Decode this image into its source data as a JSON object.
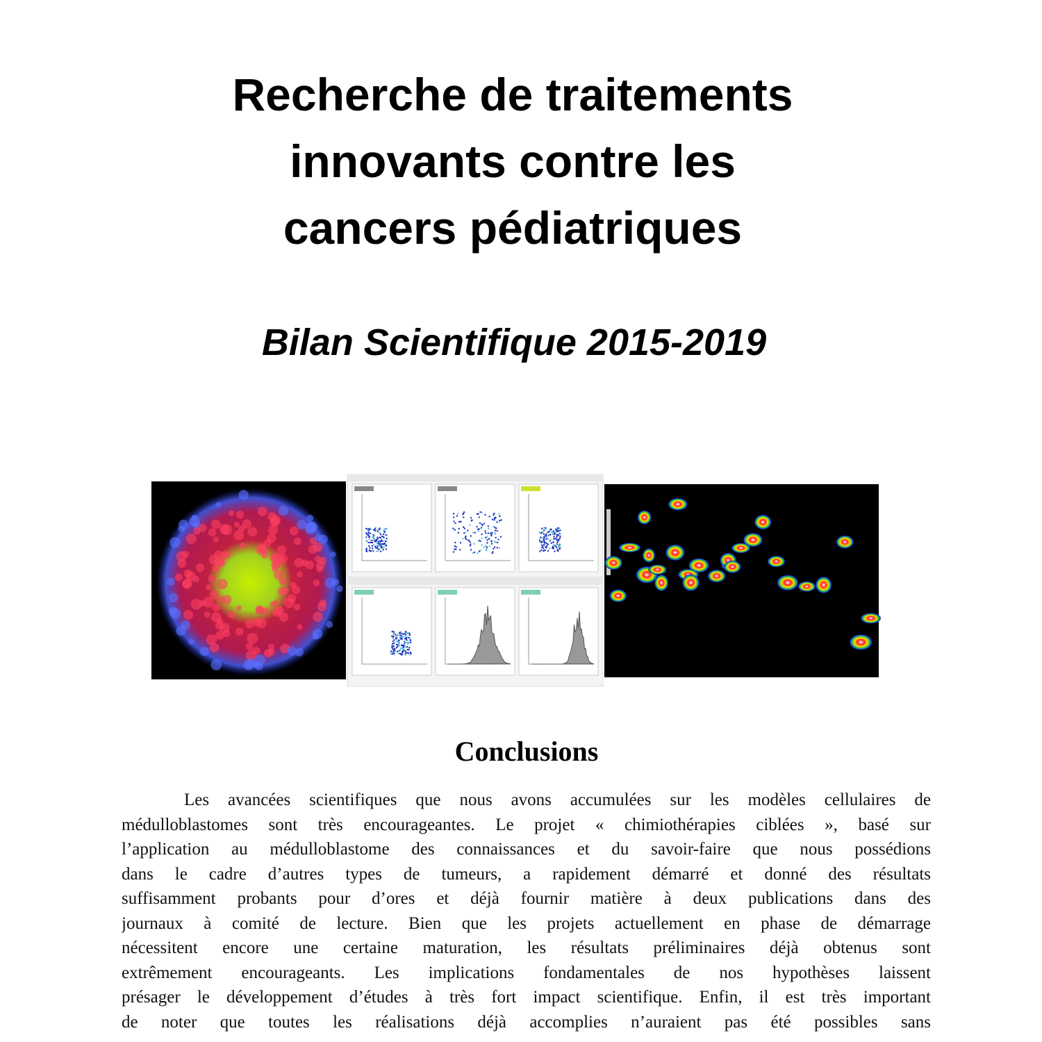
{
  "header": {
    "title_lines": [
      "Recherche de traitements",
      "innovants contre les",
      "cancers pédiatriques"
    ],
    "subtitle": "Bilan Scientifique 2015-2019"
  },
  "conclusions": {
    "heading": "Conclusions",
    "lines": [
      "Les avancées scientifiques que nous avons accumulées sur les modèles cellulaires de",
      "médulloblastomes sont très encourageantes. Le projet « chimiothérapies ciblées », basé sur",
      "l’application au médulloblastome des connaissances et du savoir-faire que nous possédions",
      "dans le cadre d’autres types de tumeurs, a rapidement démarré et donné des résultats",
      "suffisamment probants pour d’ores et déjà fournir matière à deux publications dans des",
      "journaux à comité de lecture. Bien que les projets actuellement en phase de démarrage",
      "nécessitent encore une certaine maturation, les résultats préliminaires déjà obtenus sont",
      "extrêmement encourageants. Les implications fondamentales de nos hypothèses laissent",
      "présager le développement d’études à très fort impact scientifique. Enfin, il est très important",
      "de noter que toutes les réalisations déjà accomplies n’auraient pas été possibles sans"
    ]
  }
}
